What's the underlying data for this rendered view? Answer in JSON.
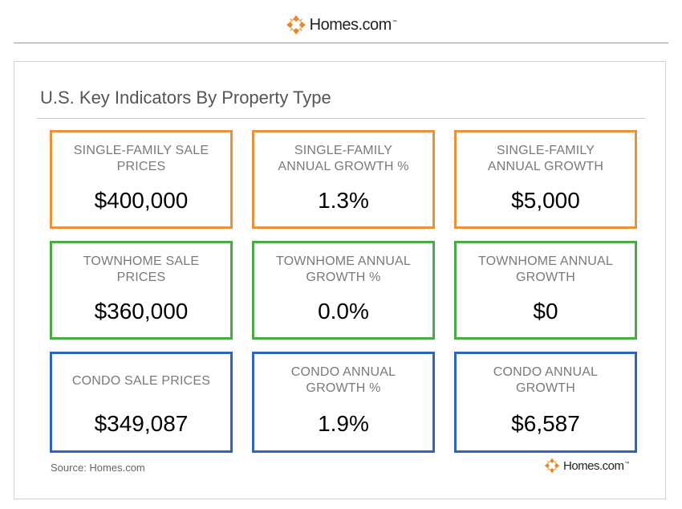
{
  "brand": {
    "name": "Homes.com",
    "tm": "™",
    "colors": {
      "orange": "#e38a2b",
      "logo_dark": "#3a2a1a"
    }
  },
  "panel": {
    "title": "U.S. Key Indicators By Property Type"
  },
  "cards": [
    {
      "label": "SINGLE-FAMILY SALE PRICES",
      "value": "$400,000",
      "color": "#e8933b"
    },
    {
      "label": "SINGLE-FAMILY ANNUAL GROWTH %",
      "value": "1.3%",
      "color": "#e8933b"
    },
    {
      "label": "SINGLE-FAMILY ANNUAL GROWTH",
      "value": "$5,000",
      "color": "#e8933b"
    },
    {
      "label": "TOWNHOME SALE PRICES",
      "value": "$360,000",
      "color": "#4aab46"
    },
    {
      "label": "TOWNHOME ANNUAL GROWTH %",
      "value": "0.0%",
      "color": "#4aab46"
    },
    {
      "label": "TOWNHOME ANNUAL GROWTH",
      "value": "$0",
      "color": "#4aab46"
    },
    {
      "label": "CONDO SALE PRICES",
      "value": "$349,087",
      "color": "#2d66b4"
    },
    {
      "label": "CONDO ANNUAL GROWTH %",
      "value": "1.9%",
      "color": "#2d66b4"
    },
    {
      "label": "CONDO ANNUAL GROWTH",
      "value": "$6,587",
      "color": "#2d66b4"
    }
  ],
  "footer": {
    "source": "Source: Homes.com"
  }
}
